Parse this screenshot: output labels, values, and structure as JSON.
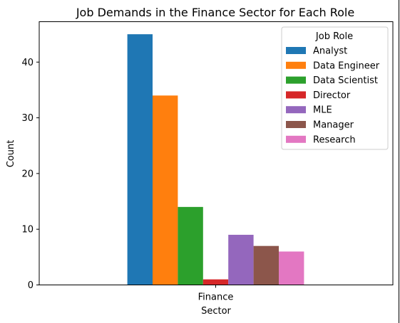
{
  "chart_data": {
    "type": "bar",
    "title": "Job Demands in the Finance Sector for Each Role",
    "xlabel": "Sector",
    "ylabel": "Count",
    "categories": [
      "Finance"
    ],
    "series": [
      {
        "name": "Analyst",
        "values": [
          45
        ],
        "color": "#1f77b4"
      },
      {
        "name": "Data Engineer",
        "values": [
          34
        ],
        "color": "#ff7f0e"
      },
      {
        "name": "Data Scientist",
        "values": [
          14
        ],
        "color": "#2ca02c"
      },
      {
        "name": "Director",
        "values": [
          1
        ],
        "color": "#d62728"
      },
      {
        "name": "MLE",
        "values": [
          9
        ],
        "color": "#9467bd"
      },
      {
        "name": "Manager",
        "values": [
          7
        ],
        "color": "#8c564b"
      },
      {
        "name": "Research",
        "values": [
          6
        ],
        "color": "#e377c2"
      }
    ],
    "yticks": [
      0,
      10,
      20,
      30,
      40
    ],
    "ylim": [
      0,
      47.25
    ],
    "grid": false,
    "legend": {
      "title": "Job Role",
      "placement": "top-right"
    }
  }
}
